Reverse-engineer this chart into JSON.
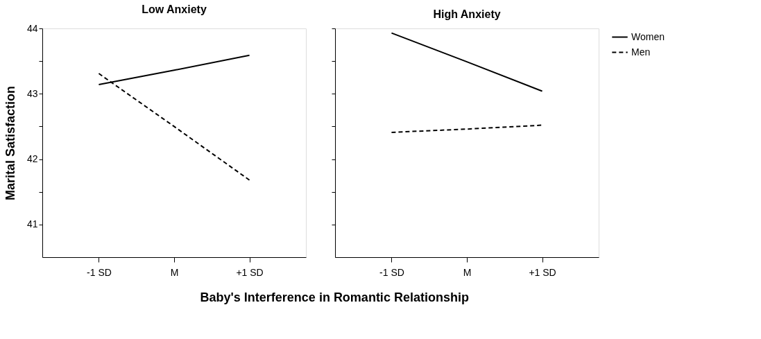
{
  "chart_data": [
    {
      "type": "line",
      "title": "Low Anxiety",
      "ylabel": "Marital Satisfaction",
      "xlabel": "Baby's Interference in Romantic Relationship",
      "categories": [
        "-1 SD",
        "M",
        "+1 SD"
      ],
      "ylim": [
        40.5,
        44
      ],
      "yticks": [
        41,
        {
          "value": 41.5,
          "label": null
        },
        42,
        {
          "value": 42.5,
          "label": null
        },
        43,
        {
          "value": 43.5,
          "label": null
        },
        44
      ],
      "grid": false,
      "legend": false,
      "marker": "none",
      "series": [
        {
          "color": "#000000",
          "line_style": "solid",
          "values": [
            43.14,
            43.36,
            43.59
          ]
        },
        {
          "color": "#000000",
          "line_style": "dashed",
          "values": [
            43.31,
            42.5,
            41.68
          ]
        }
      ]
    },
    {
      "type": "line",
      "title": "High Anxiety",
      "categories": [
        "-1 SD",
        "M",
        "+1 SD"
      ],
      "ylim": [
        40.5,
        44
      ],
      "yticks": [
        41,
        {
          "value": 41.5,
          "label": null
        },
        42,
        {
          "value": 42.5,
          "label": null
        },
        43,
        {
          "value": 43.5,
          "label": null
        },
        44
      ],
      "grid": false,
      "legend": "right",
      "marker": "none",
      "tick_labels": "x",
      "series": [
        {
          "name": "Women",
          "color": "#000000",
          "line_style": "solid",
          "values": [
            43.93,
            43.49,
            43.04
          ]
        },
        {
          "name": "Men",
          "color": "#000000",
          "line_style": "dashed",
          "values": [
            42.41,
            42.46,
            42.52
          ]
        }
      ]
    }
  ]
}
